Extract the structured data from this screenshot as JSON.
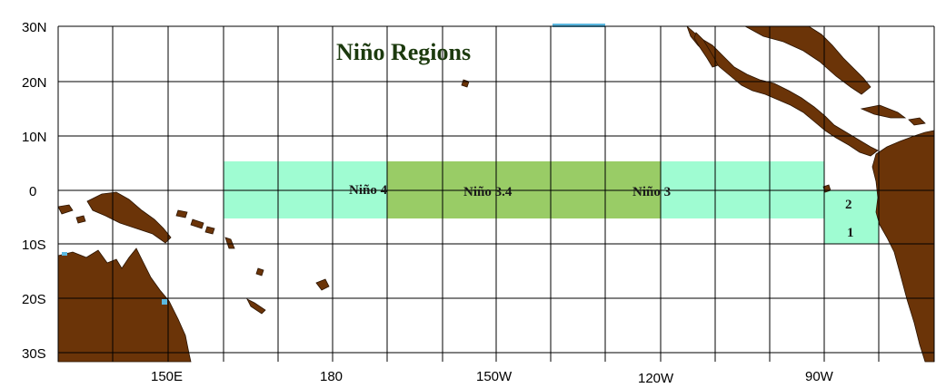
{
  "title": "Niño  Regions",
  "latitude_labels": [
    "30N",
    "20N",
    "10N",
    "0",
    "10S",
    "20S",
    "30S"
  ],
  "longitude_labels": [
    "150E",
    "180",
    "150W",
    "120W",
    "90W"
  ],
  "regions": [
    {
      "id": "nino4",
      "label": "Niño  4"
    },
    {
      "id": "nino34",
      "label": "Niño  3.4"
    },
    {
      "id": "nino3",
      "label": "Niño  3"
    },
    {
      "id": "nino2",
      "label": "2"
    },
    {
      "id": "nino1",
      "label": "1"
    }
  ],
  "colors": {
    "ocean_region": "#9ffcd2",
    "overlap_region": "#99cc66",
    "land": "#6b3408",
    "title": "#1c3a0e",
    "water_accent": "#5bb8e0"
  }
}
